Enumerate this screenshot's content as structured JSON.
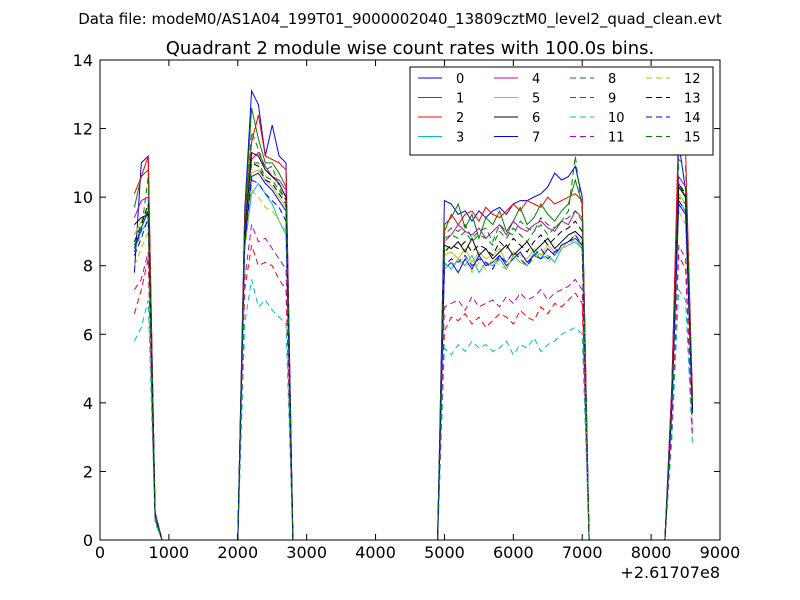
{
  "figure": {
    "header": "Data file: modeM0/AS1A04_199T01_9000002040_13809cztM0_level2_quad_clean.evt"
  },
  "chart_data": {
    "type": "line",
    "title": "Quadrant 2 module wise count rates with 100.0s bins.",
    "xlabel": "",
    "ylabel": "",
    "x_offset_label": "+2.61707e8",
    "xlim": [
      0,
      9000
    ],
    "ylim": [
      0,
      14
    ],
    "xticks": [
      0,
      1000,
      2000,
      3000,
      4000,
      5000,
      6000,
      7000,
      8000,
      9000
    ],
    "yticks": [
      0,
      2,
      4,
      6,
      8,
      10,
      12,
      14
    ],
    "grid": false,
    "legend": {
      "placement": "top-right",
      "columns": 4
    },
    "segments": [
      {
        "x": [
          500,
          600,
          700,
          800,
          900
        ]
      },
      {
        "x": [
          2000,
          2100,
          2200,
          2300,
          2400,
          2500,
          2600,
          2700,
          2800
        ]
      },
      {
        "x": [
          4900,
          5000,
          5100,
          5200,
          5300,
          5400,
          5500,
          5600,
          5700,
          5800,
          5900,
          6000,
          6100,
          6200,
          6300,
          6400,
          6500,
          6600,
          6700,
          6800,
          6900,
          7000,
          7100
        ]
      },
      {
        "x": [
          8200,
          8300,
          8400,
          8500,
          8600
        ]
      }
    ],
    "series": [
      {
        "name": "0",
        "color": "#0000ff",
        "dash": "solid",
        "segments": [
          [
            7.8,
            11.0,
            11.2,
            0.8,
            0
          ],
          [
            0,
            9.6,
            13.1,
            12.7,
            11.2,
            12.1,
            11.2,
            11.0,
            0
          ],
          [
            0,
            9.9,
            9.8,
            9.5,
            9.6,
            9.3,
            9.6,
            9.4,
            9.6,
            9.7,
            9.5,
            9.8,
            9.9,
            9.9,
            10.0,
            10.1,
            10.3,
            10.7,
            10.5,
            10.6,
            10.9,
            10.0,
            0
          ],
          [
            0,
            4.5,
            11.6,
            10.2,
            4.2
          ]
        ]
      },
      {
        "name": "1",
        "color": "#008000",
        "dash": "solid",
        "segments": [
          [
            9.7,
            10.6,
            10.8,
            0.8,
            0
          ],
          [
            0,
            9.4,
            12.6,
            11.7,
            11.0,
            11.0,
            10.7,
            10.3,
            0
          ],
          [
            0,
            9.2,
            9.4,
            9.8,
            9.1,
            9.5,
            8.8,
            9.4,
            9.2,
            9.6,
            9.0,
            9.3,
            9.7,
            9.2,
            9.4,
            9.8,
            9.5,
            9.3,
            9.6,
            9.8,
            10.5,
            9.8,
            0
          ],
          [
            0,
            4.2,
            10.4,
            10.0,
            4.0
          ]
        ]
      },
      {
        "name": "2",
        "color": "#ff0000",
        "dash": "solid",
        "segments": [
          [
            10.1,
            10.6,
            11.2,
            0.8,
            0
          ],
          [
            0,
            9.4,
            11.6,
            12.4,
            11.2,
            11.1,
            11.0,
            10.8,
            0
          ],
          [
            0,
            9.0,
            9.5,
            9.2,
            9.5,
            9.6,
            9.3,
            9.7,
            9.5,
            9.4,
            9.6,
            9.8,
            9.6,
            9.9,
            9.8,
            9.7,
            10.0,
            9.8,
            9.9,
            10.0,
            10.1,
            9.9,
            0
          ],
          [
            0,
            4.4,
            12.2,
            11.3,
            4.3
          ]
        ]
      },
      {
        "name": "3",
        "color": "#00bfbf",
        "dash": "solid",
        "segments": [
          [
            8.6,
            9.0,
            9.3,
            0.7,
            0
          ],
          [
            0,
            8.5,
            10.1,
            10.4,
            10.1,
            9.8,
            9.3,
            8.9,
            0
          ],
          [
            0,
            8.1,
            7.9,
            8.2,
            8.0,
            8.3,
            7.8,
            8.1,
            8.0,
            8.2,
            7.9,
            8.3,
            8.1,
            8.0,
            8.4,
            8.2,
            8.3,
            8.1,
            8.5,
            8.6,
            8.7,
            8.5,
            0
          ],
          [
            0,
            3.9,
            9.9,
            9.6,
            3.8
          ]
        ]
      },
      {
        "name": "4",
        "color": "#bf00bf",
        "dash": "solid",
        "segments": [
          [
            9.4,
            9.9,
            10.0,
            0.8,
            0
          ],
          [
            0,
            9.1,
            11.1,
            11.3,
            10.9,
            10.6,
            10.5,
            10.2,
            0
          ],
          [
            0,
            8.8,
            8.9,
            9.2,
            9.0,
            8.9,
            9.1,
            8.8,
            9.0,
            9.2,
            8.9,
            9.3,
            9.1,
            9.0,
            9.2,
            9.3,
            9.1,
            9.0,
            9.3,
            9.2,
            9.6,
            9.4,
            0
          ],
          [
            0,
            4.1,
            10.6,
            10.3,
            4.0
          ]
        ]
      },
      {
        "name": "5",
        "color": "#bfbf00",
        "dash": "solid",
        "segments": [
          [
            8.9,
            9.3,
            9.5,
            0.7,
            0
          ],
          [
            0,
            8.8,
            10.7,
            10.8,
            10.5,
            10.3,
            10.0,
            9.7,
            0
          ],
          [
            0,
            8.3,
            8.4,
            8.2,
            8.5,
            8.1,
            8.4,
            8.2,
            8.3,
            8.5,
            8.1,
            8.4,
            8.3,
            8.2,
            8.5,
            8.3,
            8.6,
            8.4,
            8.5,
            8.7,
            8.9,
            8.6,
            0
          ],
          [
            0,
            3.9,
            10.1,
            9.8,
            3.9
          ]
        ]
      },
      {
        "name": "6",
        "color": "#000000",
        "dash": "solid",
        "segments": [
          [
            9.2,
            9.4,
            9.5,
            0.7,
            0
          ],
          [
            0,
            8.9,
            11.3,
            11.2,
            10.8,
            10.6,
            10.4,
            10.0,
            0
          ],
          [
            0,
            8.6,
            8.5,
            8.7,
            8.4,
            8.8,
            8.3,
            8.5,
            8.2,
            8.4,
            8.6,
            8.3,
            8.5,
            8.7,
            8.4,
            8.6,
            8.8,
            8.5,
            8.7,
            8.9,
            9.0,
            8.8,
            0
          ],
          [
            0,
            4.0,
            10.3,
            10.0,
            3.9
          ]
        ]
      },
      {
        "name": "7",
        "color": "#0000ff",
        "dash": "solid",
        "segments": [
          [
            8.5,
            9.1,
            9.6,
            0.7,
            0
          ],
          [
            0,
            8.7,
            10.6,
            10.7,
            10.4,
            10.2,
            9.9,
            9.6,
            0
          ],
          [
            0,
            7.9,
            8.1,
            7.8,
            8.2,
            7.9,
            8.3,
            8.0,
            8.1,
            8.3,
            8.0,
            8.2,
            8.4,
            8.1,
            8.3,
            8.2,
            8.5,
            8.3,
            8.6,
            8.7,
            8.8,
            8.6,
            0
          ],
          [
            0,
            3.8,
            9.8,
            9.5,
            3.7
          ]
        ]
      },
      {
        "name": "8",
        "color": "#008000",
        "dash": "dashed",
        "segments": [
          [
            8.4,
            9.0,
            10.6,
            0.8,
            0
          ],
          [
            0,
            9.2,
            11.9,
            11.4,
            10.8,
            10.9,
            10.3,
            9.9,
            0
          ],
          [
            0,
            8.9,
            9.1,
            9.0,
            9.2,
            8.8,
            9.0,
            9.1,
            8.7,
            9.2,
            9.0,
            8.9,
            9.3,
            9.1,
            9.0,
            9.4,
            9.2,
            9.1,
            9.3,
            9.6,
            11.2,
            9.6,
            0
          ],
          [
            0,
            4.0,
            10.0,
            9.8,
            3.8
          ]
        ]
      },
      {
        "name": "9",
        "color": "#ff0000",
        "dash": "dashed",
        "segments": [
          [
            6.6,
            7.3,
            8.2,
            0.6,
            0
          ],
          [
            0,
            7.3,
            8.6,
            8.0,
            8.1,
            8.0,
            7.6,
            7.3,
            0
          ],
          [
            0,
            6.1,
            6.5,
            6.4,
            6.6,
            6.3,
            6.5,
            6.2,
            6.4,
            6.6,
            6.5,
            6.3,
            6.7,
            6.5,
            6.4,
            6.8,
            6.6,
            6.9,
            6.8,
            7.0,
            7.2,
            6.9,
            0
          ],
          [
            0,
            3.2,
            8.3,
            7.9,
            3.1
          ]
        ]
      },
      {
        "name": "10",
        "color": "#00bfbf",
        "dash": "dashed",
        "segments": [
          [
            5.8,
            6.2,
            7.0,
            0.5,
            0
          ],
          [
            0,
            6.3,
            7.6,
            6.8,
            7.0,
            6.7,
            6.5,
            6.3,
            0
          ],
          [
            0,
            5.6,
            5.4,
            5.7,
            5.5,
            5.8,
            5.6,
            5.7,
            5.5,
            5.6,
            5.8,
            5.4,
            5.7,
            5.6,
            5.9,
            5.5,
            5.7,
            5.8,
            6.0,
            6.1,
            6.2,
            6.0,
            0
          ],
          [
            0,
            2.9,
            7.3,
            7.0,
            2.8
          ]
        ]
      },
      {
        "name": "11",
        "color": "#bf00bf",
        "dash": "dashed",
        "segments": [
          [
            7.3,
            7.6,
            8.4,
            0.6,
            0
          ],
          [
            0,
            7.6,
            9.2,
            8.7,
            8.8,
            8.5,
            8.2,
            7.9,
            0
          ],
          [
            0,
            6.8,
            6.9,
            7.0,
            6.7,
            7.1,
            6.8,
            6.9,
            7.0,
            6.8,
            7.1,
            6.9,
            7.2,
            7.0,
            7.1,
            7.3,
            7.0,
            7.2,
            7.3,
            7.4,
            7.6,
            7.3,
            0
          ],
          [
            0,
            3.3,
            8.6,
            8.2,
            3.2
          ]
        ]
      },
      {
        "name": "12",
        "color": "#bfbf00",
        "dash": "dashed",
        "segments": [
          [
            8.0,
            8.5,
            9.0,
            0.7,
            0
          ],
          [
            0,
            8.4,
            10.2,
            10.0,
            9.7,
            9.6,
            9.3,
            9.0,
            0
          ],
          [
            0,
            7.9,
            8.1,
            8.0,
            8.2,
            7.8,
            8.1,
            7.9,
            8.2,
            8.0,
            7.9,
            8.3,
            8.1,
            8.0,
            8.2,
            8.4,
            8.1,
            8.3,
            8.5,
            8.6,
            8.8,
            8.5,
            0
          ],
          [
            0,
            3.7,
            9.6,
            9.2,
            3.6
          ]
        ]
      },
      {
        "name": "13",
        "color": "#000000",
        "dash": "dashed",
        "segments": [
          [
            8.7,
            9.2,
            9.8,
            0.7,
            0
          ],
          [
            0,
            9.0,
            11.0,
            10.9,
            10.5,
            10.4,
            10.1,
            9.8,
            0
          ],
          [
            0,
            8.4,
            8.6,
            8.5,
            8.7,
            8.4,
            8.6,
            8.5,
            8.3,
            8.7,
            8.5,
            8.8,
            8.6,
            8.4,
            8.7,
            8.9,
            8.6,
            8.8,
            9.0,
            9.1,
            9.3,
            9.0,
            0
          ],
          [
            0,
            3.9,
            10.4,
            10.1,
            3.8
          ]
        ]
      },
      {
        "name": "14",
        "color": "#0000ff",
        "dash": "dashed",
        "segments": [
          [
            8.3,
            8.8,
            9.4,
            0.7,
            0
          ],
          [
            0,
            8.6,
            10.5,
            10.4,
            10.1,
            9.9,
            9.7,
            9.3,
            0
          ],
          [
            0,
            8.0,
            8.2,
            8.1,
            8.3,
            8.0,
            8.2,
            8.1,
            7.9,
            8.3,
            8.1,
            8.4,
            8.2,
            8.0,
            8.3,
            8.5,
            8.2,
            8.4,
            8.6,
            8.7,
            8.9,
            8.6,
            0
          ],
          [
            0,
            3.8,
            9.9,
            9.6,
            3.7
          ]
        ]
      },
      {
        "name": "15",
        "color": "#008000",
        "dash": "dashed",
        "segments": [
          [
            8.6,
            9.1,
            9.7,
            0.7,
            0
          ],
          [
            0,
            8.9,
            11.0,
            11.0,
            10.6,
            10.5,
            10.2,
            9.9,
            0
          ],
          [
            0,
            8.7,
            8.9,
            8.8,
            9.0,
            8.7,
            8.9,
            8.8,
            8.6,
            9.0,
            8.8,
            9.1,
            8.9,
            8.7,
            9.0,
            9.2,
            8.9,
            9.1,
            9.3,
            9.4,
            9.6,
            9.3,
            0
          ],
          [
            0,
            4.0,
            11.1,
            10.9,
            4.0
          ]
        ]
      }
    ]
  }
}
